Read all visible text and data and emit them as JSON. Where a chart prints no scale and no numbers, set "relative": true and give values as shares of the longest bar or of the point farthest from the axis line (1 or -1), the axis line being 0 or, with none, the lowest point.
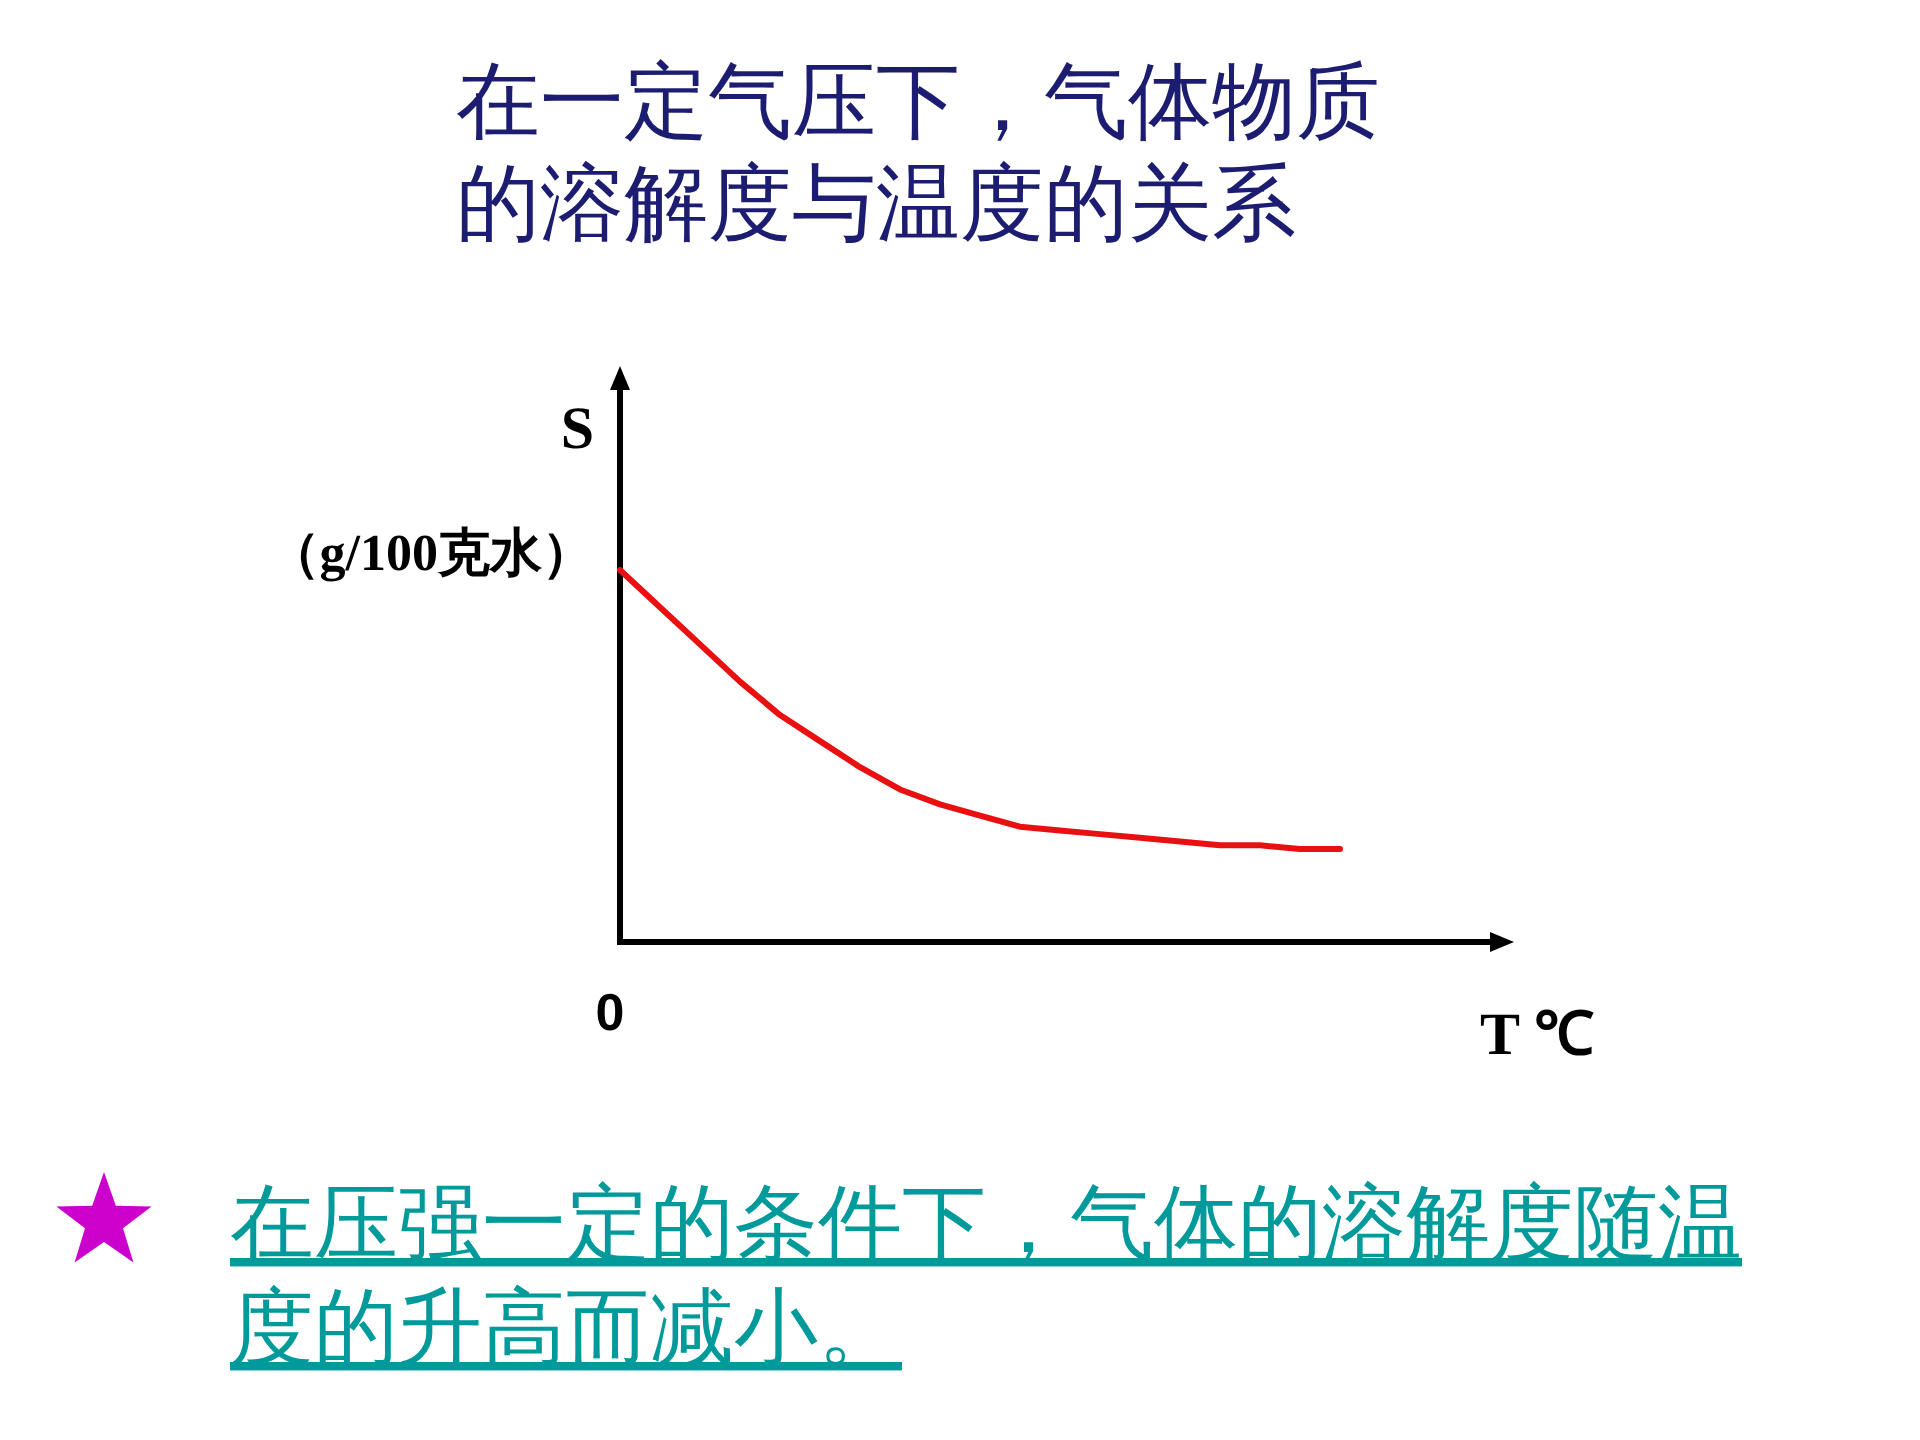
{
  "chart_data": {
    "type": "line",
    "title": "在一定气压下，气体物质的溶解度与温度的关系",
    "xlabel": "T ℃",
    "ylabel": "S\n（g/100克水）",
    "relative": true,
    "categories": [
      null,
      null,
      null,
      null,
      null,
      null,
      null,
      null,
      null,
      null,
      null,
      null,
      null,
      null,
      null,
      null,
      null,
      null,
      null
    ],
    "series": [
      {
        "color": "#e81010",
        "values": [
          1.0,
          0.9,
          0.8,
          0.7,
          0.61,
          0.54,
          0.47,
          0.41,
          0.37,
          0.34,
          0.31,
          0.3,
          0.29,
          0.28,
          0.27,
          0.26,
          0.26,
          0.25,
          0.25
        ]
      }
    ],
    "annotations": [
      "0",
      "在压强一定的条件下，气体的溶解度随温度的升高而减小。"
    ]
  }
}
